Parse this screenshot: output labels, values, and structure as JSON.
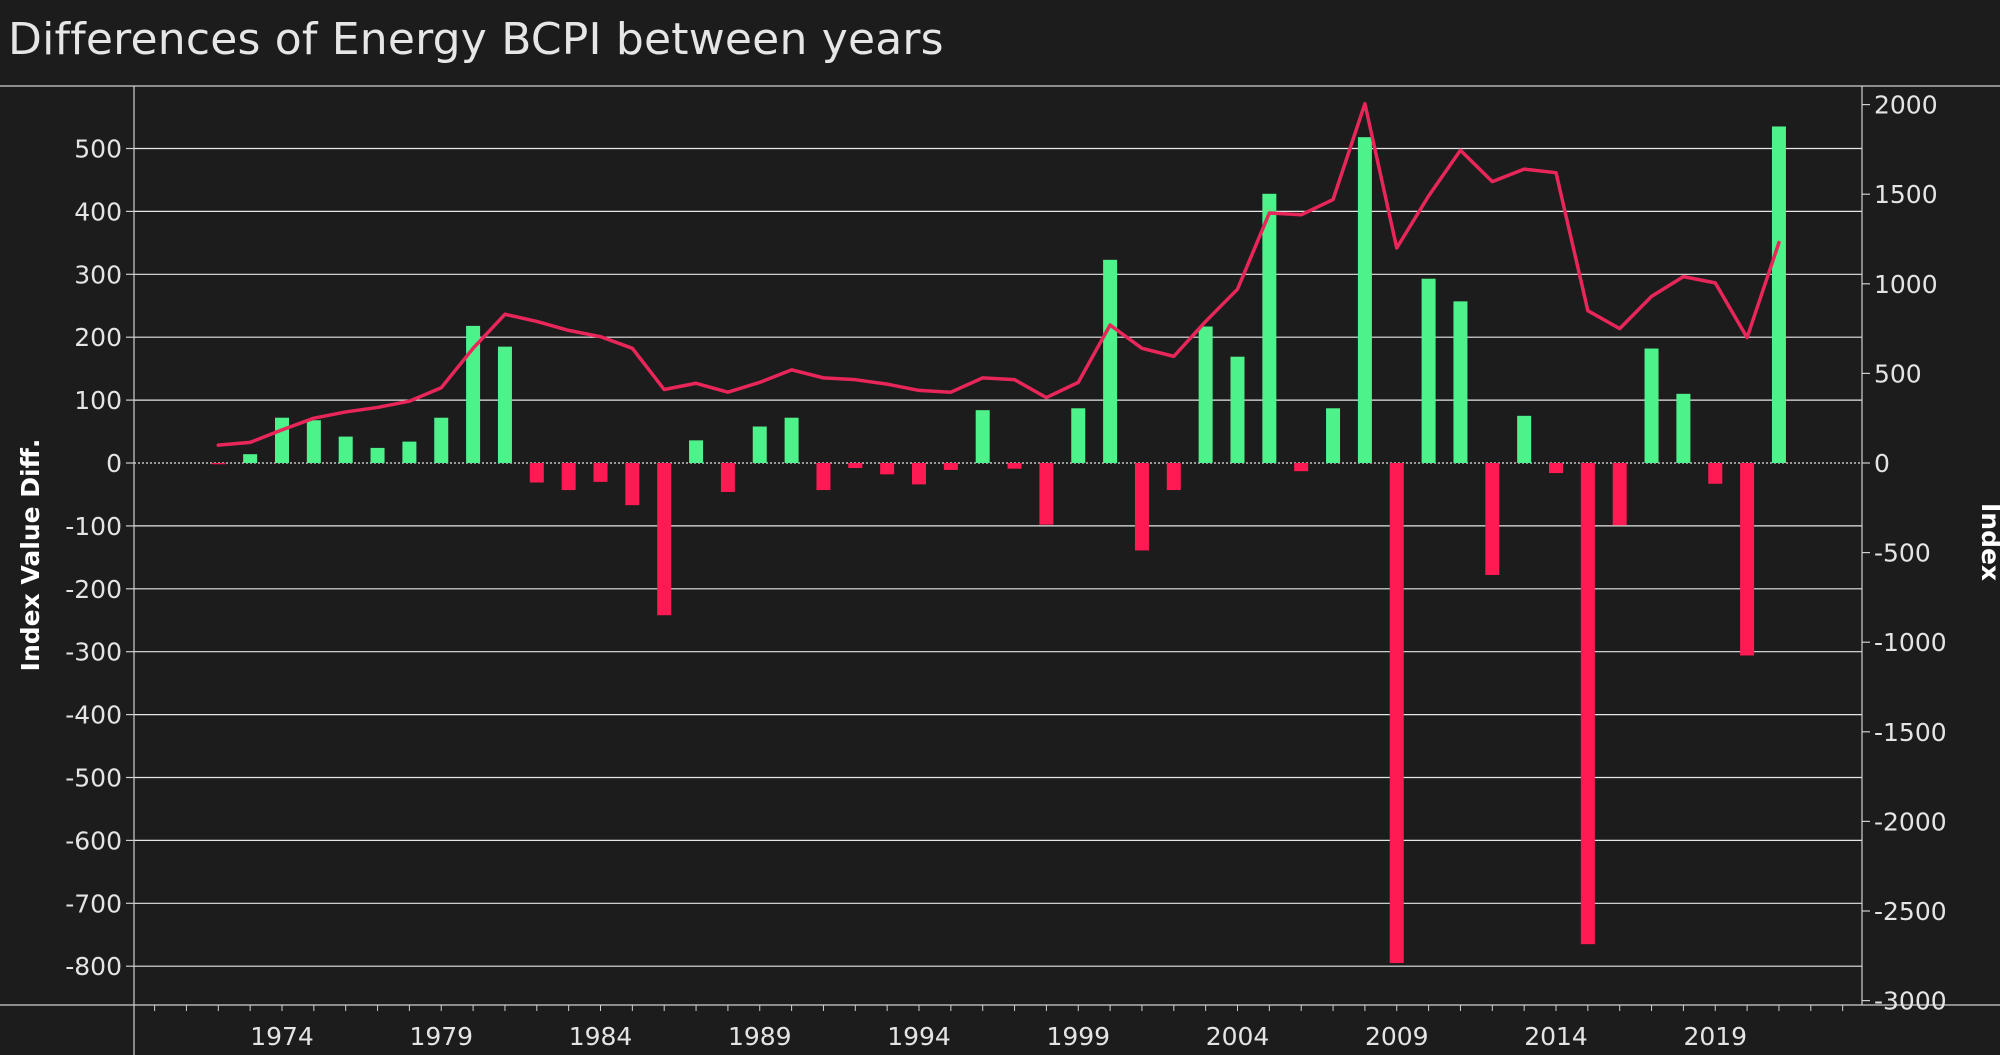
{
  "chart_data": {
    "type": "bar",
    "title": "Differences of Energy BCPI between years",
    "ylabel": "Index Value Diff.",
    "y2label": "Index",
    "ylim": [
      -860,
      600
    ],
    "y2lim": [
      -3000,
      2000
    ],
    "yticks": [
      500,
      400,
      300,
      200,
      100,
      0,
      -100,
      -200,
      -300,
      -400,
      -500,
      -600,
      -700,
      -800
    ],
    "y2ticks": [
      2000,
      1500,
      1000,
      500,
      0,
      -500,
      -1000,
      -1500,
      -2000,
      -2500,
      -3000
    ],
    "xticks": [
      1974,
      1979,
      1984,
      1989,
      1994,
      1999,
      2004,
      2009,
      2014,
      2019
    ],
    "colors": {
      "positive": "#4ef28a",
      "negative": "#ff1a53",
      "line": "#e8265a",
      "grid": "#e6e6e6",
      "background": "#1c1c1c"
    },
    "series": [
      {
        "type": "bar",
        "x": [
          1972,
          1973,
          1974,
          1975,
          1976,
          1977,
          1978,
          1979,
          1980,
          1981,
          1982,
          1983,
          1984,
          1985,
          1986,
          1987,
          1988,
          1989,
          1990,
          1991,
          1992,
          1993,
          1994,
          1995,
          1996,
          1997,
          1998,
          1999,
          2000,
          2001,
          2002,
          2003,
          2004,
          2005,
          2006,
          2007,
          2008,
          2009,
          2010,
          2011,
          2012,
          2013,
          2014,
          2015,
          2016,
          2017,
          2018,
          2019,
          2020,
          2021
        ],
        "values": [
          -2,
          14,
          72,
          68,
          42,
          24,
          34,
          72,
          218,
          185,
          -31,
          -43,
          -30,
          -67,
          -242,
          36,
          -46,
          58,
          72,
          -43,
          -8,
          -18,
          -34,
          -11,
          84,
          -9,
          -98,
          87,
          323,
          -139,
          -43,
          217,
          169,
          428,
          -13,
          87,
          518,
          -795,
          293,
          257,
          -178,
          75,
          -16,
          -765,
          -99,
          182,
          110,
          -33,
          -306,
          535
        ]
      },
      {
        "type": "line",
        "x": [
          1972,
          1973,
          1974,
          1975,
          1976,
          1977,
          1978,
          1979,
          1980,
          1981,
          1982,
          1983,
          1984,
          1985,
          1986,
          1987,
          1988,
          1989,
          1990,
          1991,
          1992,
          1993,
          1994,
          1995,
          1996,
          1997,
          1998,
          1999,
          2000,
          2001,
          2002,
          2003,
          2004,
          2005,
          2006,
          2007,
          2008,
          2009,
          2010,
          2011,
          2012,
          2013,
          2014,
          2015,
          2016,
          2017,
          2018,
          2019,
          2020,
          2021
        ],
        "values": [
          100,
          115,
          185,
          250,
          285,
          310,
          345,
          420,
          640,
          830,
          790,
          740,
          705,
          640,
          410,
          445,
          395,
          450,
          520,
          475,
          465,
          440,
          405,
          395,
          475,
          465,
          365,
          450,
          770,
          640,
          595,
          790,
          970,
          1395,
          1385,
          1470,
          2005,
          1200,
          1490,
          1745,
          1570,
          1640,
          1620,
          850,
          750,
          930,
          1040,
          1005,
          700,
          1230
        ]
      }
    ]
  }
}
